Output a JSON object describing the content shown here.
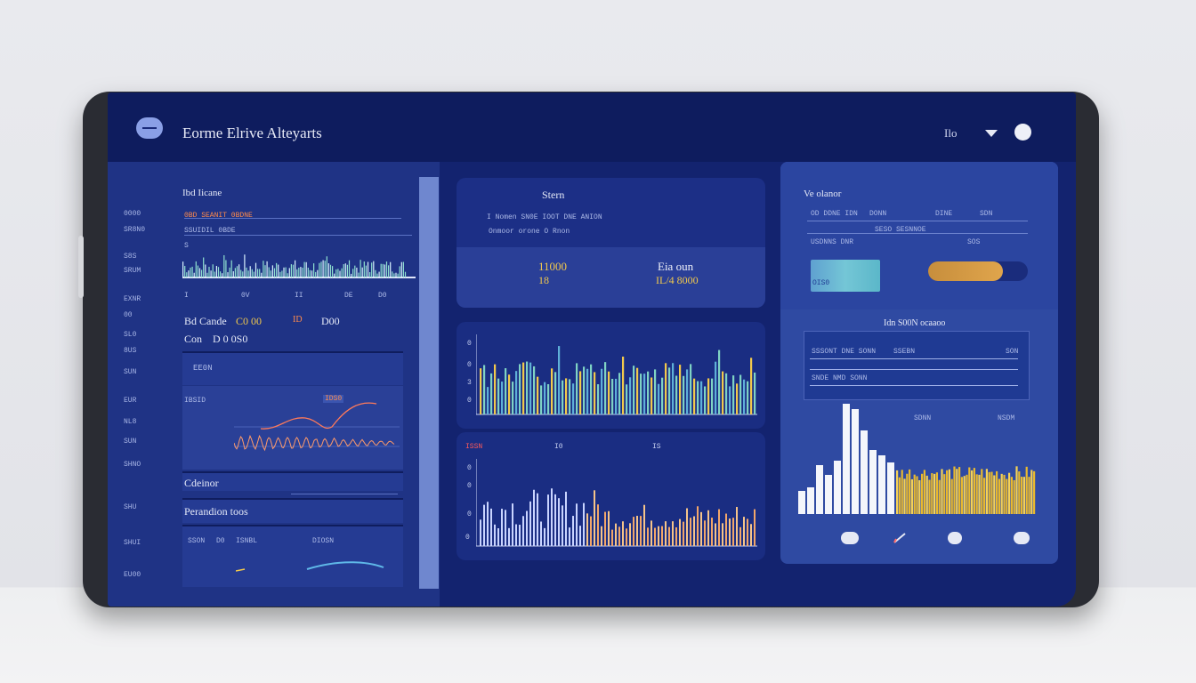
{
  "header": {
    "title": "Eorme Elrive Alteyarts",
    "user_label": "Ilo",
    "icons": [
      "logo-icon",
      "dropdown-icon",
      "avatar"
    ]
  },
  "left_nav": {
    "items": [
      "0000",
      "SR8N0",
      "S8S",
      "SRUM",
      "EXNR",
      "00",
      "SL0",
      "8US",
      "SUN",
      "EUR",
      "NL8",
      "SUN",
      "SHNO",
      "SHU",
      "SHUI",
      "EU00"
    ]
  },
  "left_panel": {
    "title": "Ibd Iicane",
    "row_labels": [
      "0BD SEANIT 0BDNE",
      "SSUIDIL 0BDE",
      "S"
    ],
    "axis_labels": [
      "I",
      "0V",
      "II",
      "DE",
      "D0"
    ],
    "stat1_label": "Bd Cande",
    "stat1_value": "C0 00",
    "stat1b_label": "ID",
    "stat1b_value": "D00",
    "stat2_label": "Con",
    "stat2_value": "D 0 0S0",
    "box1_label": "EE0N",
    "chart_label": "IBSID",
    "chart_tag": "IDS0",
    "heading1": "Cdeinor",
    "heading2": "Perandion toos",
    "footer_labels": [
      "SSON",
      "D0",
      "ISNBL",
      "DIOSN"
    ]
  },
  "summary_card": {
    "title": "Stern",
    "line1": "I  Nomen SN0E  IOOT  DNE  ANION",
    "line2": "Onmoor orone  O  Rnon",
    "value_gold": "11000",
    "value_gold_sub": "18",
    "value_white_label": "Eia oun",
    "value_white": "IL/4 8000"
  },
  "top_chart": {
    "axis_labels": [
      "0",
      "0",
      "3",
      "0"
    ]
  },
  "bottom_chart": {
    "labels": [
      "ISSN",
      "I0",
      "IS"
    ],
    "axis_labels": [
      "0",
      "0",
      "0",
      "0"
    ]
  },
  "right_panel": {
    "title": "Ve olanor",
    "header_row": [
      "OD DDNE IDN",
      "DONN",
      "DINE",
      "SDN"
    ],
    "row2": [
      "USDNNS DNR",
      "SESO SESNNOE",
      "SOS"
    ],
    "cyan_label": "OIS0",
    "progress_value": 0.75,
    "section_title": "Idn  S00N ocaaoo",
    "table_rows": [
      "SSSONT DNE SONN",
      "SSEBN",
      "SON",
      "SNDE NMD SONN"
    ],
    "legend": [
      "SDNN",
      "NSDM"
    ]
  },
  "colors": {
    "accent_gold": "#f2c94c",
    "accent_orange": "#ff8a4c",
    "accent_cyan": "#74c6d6",
    "bg_dark": "#13236f"
  }
}
